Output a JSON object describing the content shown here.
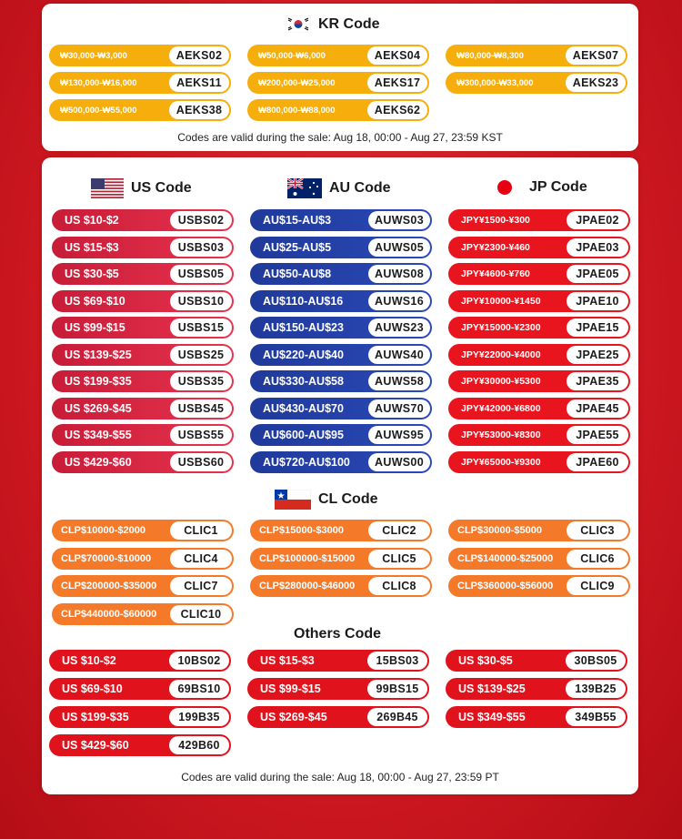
{
  "colors": {
    "background": "#d81824",
    "kr_pill": "#f5ae0c",
    "us_pill": "#d42a45",
    "au_pill": "#2542a8",
    "jp_pill": "#e8151e",
    "cl_pill": "#f47a2a",
    "others_pill": "#e0121c"
  },
  "kr": {
    "title": "KR Code",
    "flag_icon": "south-korea-flag-icon",
    "items": [
      {
        "range": "₩30,000-₩3,000",
        "code": "AEKS02"
      },
      {
        "range": "₩50,000-₩6,000",
        "code": "AEKS04"
      },
      {
        "range": "₩80,000-₩8,300",
        "code": "AEKS07"
      },
      {
        "range": "₩130,000-₩16,000",
        "code": "AEKS11"
      },
      {
        "range": "₩200,000-₩25,000",
        "code": "AEKS17"
      },
      {
        "range": "₩300,000-₩33,000",
        "code": "AEKS23"
      },
      {
        "range": "₩500,000-₩55,000",
        "code": "AEKS38"
      },
      {
        "range": "₩800,000-₩88,000",
        "code": "AEKS62"
      }
    ],
    "note": "Codes are valid during the sale: Aug 18, 00:00 - Aug 27, 23:59 KST"
  },
  "us": {
    "title": "US Code",
    "flag_icon": "usa-flag-icon",
    "items": [
      {
        "range": "US $10-$2",
        "code": "USBS02"
      },
      {
        "range": "US $15-$3",
        "code": "USBS03"
      },
      {
        "range": "US $30-$5",
        "code": "USBS05"
      },
      {
        "range": "US $69-$10",
        "code": "USBS10"
      },
      {
        "range": "US $99-$15",
        "code": "USBS15"
      },
      {
        "range": "US $139-$25",
        "code": "USBS25"
      },
      {
        "range": "US $199-$35",
        "code": "USBS35"
      },
      {
        "range": "US $269-$45",
        "code": "USBS45"
      },
      {
        "range": "US $349-$55",
        "code": "USBS55"
      },
      {
        "range": "US $429-$60",
        "code": "USBS60"
      }
    ]
  },
  "au": {
    "title": "AU Code",
    "flag_icon": "australia-flag-icon",
    "items": [
      {
        "range": "AU$15-AU$3",
        "code": "AUWS03"
      },
      {
        "range": "AU$25-AU$5",
        "code": "AUWS05"
      },
      {
        "range": "AU$50-AU$8",
        "code": "AUWS08"
      },
      {
        "range": "AU$110-AU$16",
        "code": "AUWS16"
      },
      {
        "range": "AU$150-AU$23",
        "code": "AUWS23"
      },
      {
        "range": "AU$220-AU$40",
        "code": "AUWS40"
      },
      {
        "range": "AU$330-AU$58",
        "code": "AUWS58"
      },
      {
        "range": "AU$430-AU$70",
        "code": "AUWS70"
      },
      {
        "range": "AU$600-AU$95",
        "code": "AUWS95"
      },
      {
        "range": "AU$720-AU$100",
        "code": "AUWS00"
      }
    ]
  },
  "jp": {
    "title": "JP Code",
    "flag_icon": "japan-flag-icon",
    "items": [
      {
        "range": "JPY¥1500-¥300",
        "code": "JPAE02"
      },
      {
        "range": "JPY¥2300-¥460",
        "code": "JPAE03"
      },
      {
        "range": "JPY¥4600-¥760",
        "code": "JPAE05"
      },
      {
        "range": "JPY¥10000-¥1450",
        "code": "JPAE10"
      },
      {
        "range": "JPY¥15000-¥2300",
        "code": "JPAE15"
      },
      {
        "range": "JPY¥22000-¥4000",
        "code": "JPAE25"
      },
      {
        "range": "JPY¥30000-¥5300",
        "code": "JPAE35"
      },
      {
        "range": "JPY¥42000-¥6800",
        "code": "JPAE45"
      },
      {
        "range": "JPY¥53000-¥8300",
        "code": "JPAE55"
      },
      {
        "range": "JPY¥65000-¥9300",
        "code": "JPAE60"
      }
    ]
  },
  "cl": {
    "title": "CL Code",
    "flag_icon": "chile-flag-icon",
    "items": [
      {
        "range": "CLP$10000-$2000",
        "code": "CLIC1"
      },
      {
        "range": "CLP$15000-$3000",
        "code": "CLIC2"
      },
      {
        "range": "CLP$30000-$5000",
        "code": "CLIC3"
      },
      {
        "range": "CLP$70000-$10000",
        "code": "CLIC4"
      },
      {
        "range": "CLP$100000-$15000",
        "code": "CLIC5"
      },
      {
        "range": "CLP$140000-$25000",
        "code": "CLIC6"
      },
      {
        "range": "CLP$200000-$35000",
        "code": "CLIC7"
      },
      {
        "range": "CLP$280000-$46000",
        "code": "CLIC8"
      },
      {
        "range": "CLP$360000-$56000",
        "code": "CLIC9"
      },
      {
        "range": "CLP$440000-$60000",
        "code": "CLIC10"
      }
    ]
  },
  "others": {
    "title": "Others Code",
    "items": [
      {
        "range": "US $10-$2",
        "code": "10BS02"
      },
      {
        "range": "US $15-$3",
        "code": "15BS03"
      },
      {
        "range": "US $30-$5",
        "code": "30BS05"
      },
      {
        "range": "US $69-$10",
        "code": "69BS10"
      },
      {
        "range": "US $99-$15",
        "code": "99BS15"
      },
      {
        "range": "US $139-$25",
        "code": "139B25"
      },
      {
        "range": "US $199-$35",
        "code": "199B35"
      },
      {
        "range": "US $269-$45",
        "code": "269B45"
      },
      {
        "range": "US $349-$55",
        "code": "349B55"
      },
      {
        "range": "US $429-$60",
        "code": "429B60"
      }
    ],
    "note": "Codes are valid during the sale: Aug 18, 00:00 - Aug 27, 23:59 PT"
  }
}
